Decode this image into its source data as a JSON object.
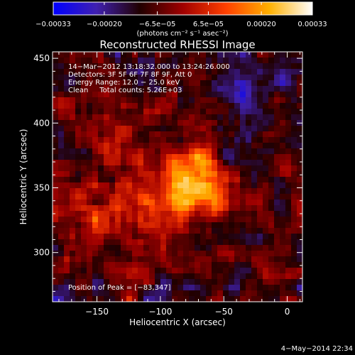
{
  "colorbar": {
    "tick_labels": [
      "−0.00033",
      "−0.00020",
      "−6.5e−05",
      "6.5e−05",
      "0.00020",
      "0.00033"
    ],
    "tick_values": [
      -0.00033,
      -0.0002,
      -6.5e-05,
      6.5e-05,
      0.0002,
      0.00033
    ],
    "range": [
      -0.00033,
      0.00033
    ],
    "unit_label": "(photons cm⁻² s⁻¹ asec⁻²)",
    "stops": [
      "#0000ff",
      "#4020b0",
      "#200000",
      "#a00000",
      "#ff4000",
      "#ffb000",
      "#ffffff"
    ]
  },
  "chart_data": {
    "type": "heatmap",
    "title": "Reconstructed RHESSI Image",
    "xlabel": "Heliocentric X (arcsec)",
    "ylabel": "Heliocentric Y (arcsec)",
    "xlim": [
      -185,
      12
    ],
    "ylim": [
      262,
      455
    ],
    "x_ticks": [
      -150,
      -100,
      -50,
      0
    ],
    "y_ticks": [
      300,
      350,
      400,
      450
    ],
    "x_tick_labels": [
      "−150",
      "−100",
      "−50",
      "0"
    ],
    "y_tick_labels": [
      "300",
      "350",
      "400",
      "450"
    ],
    "annotations": [
      "14−Mar−2012 13:18:32.000 to 13:24:26.000",
      "Detectors: 3F 5F 6F 7F 8F 9F, Att 0",
      "Energy Range: 12.0 − 25.0 keV",
      "Clean     Total counts: 5.26E+03"
    ],
    "peak_label": "Position of Peak = [−83,347]",
    "peak": [
      -83,
      347
    ]
  },
  "footer": {
    "date": "4−May−2014 22:34"
  }
}
